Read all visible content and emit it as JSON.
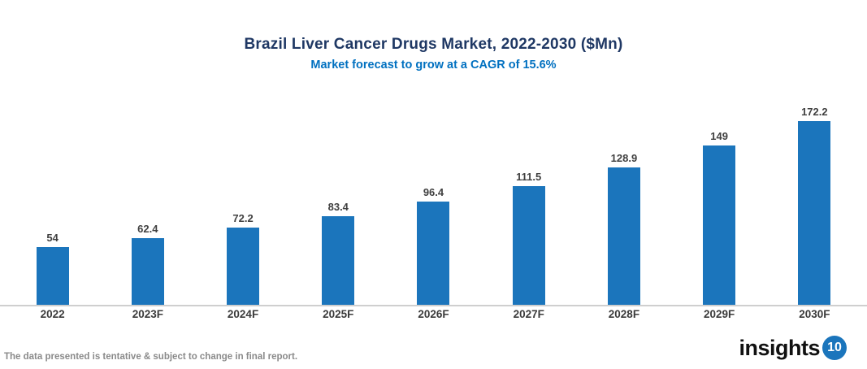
{
  "chart": {
    "title": "Brazil Liver Cancer Drugs Market, 2022-2030 ($Mn)",
    "subtitle": "Market forecast to grow at a CAGR of 15.6%",
    "footnote": "The data presented is tentative & subject to change in final report.",
    "logo": {
      "text": "insights",
      "badge": "10"
    },
    "colors": {
      "bar": "#1b75bc",
      "title": "#1f3864",
      "subtitle": "#0070c0",
      "axis_line": "#cfcfcf",
      "value_label": "#404040",
      "x_label": "#3a3a3a",
      "footnote": "#8a8a8a",
      "logo_badge": "#1b75bc",
      "logo_badge_text": "#ffffff"
    }
  },
  "chart_data": {
    "type": "bar",
    "title": "Brazil Liver Cancer Drugs Market, 2022-2030 ($Mn)",
    "subtitle": "Market forecast to grow at a CAGR of 15.6%",
    "categories": [
      "2022",
      "2023F",
      "2024F",
      "2025F",
      "2026F",
      "2027F",
      "2028F",
      "2029F",
      "2030F"
    ],
    "values": [
      54,
      62.4,
      72.2,
      83.4,
      96.4,
      111.5,
      128.9,
      149,
      172.2
    ],
    "data_labels": [
      "54",
      "62.4",
      "72.2",
      "83.4",
      "96.4",
      "111.5",
      "128.9",
      "149",
      "172.2"
    ],
    "xlabel": "",
    "ylabel": "",
    "ylim": [
      0,
      180
    ],
    "grid": false,
    "legend": false,
    "data_labels_shown": true,
    "bar_color": "#1b75bc"
  }
}
